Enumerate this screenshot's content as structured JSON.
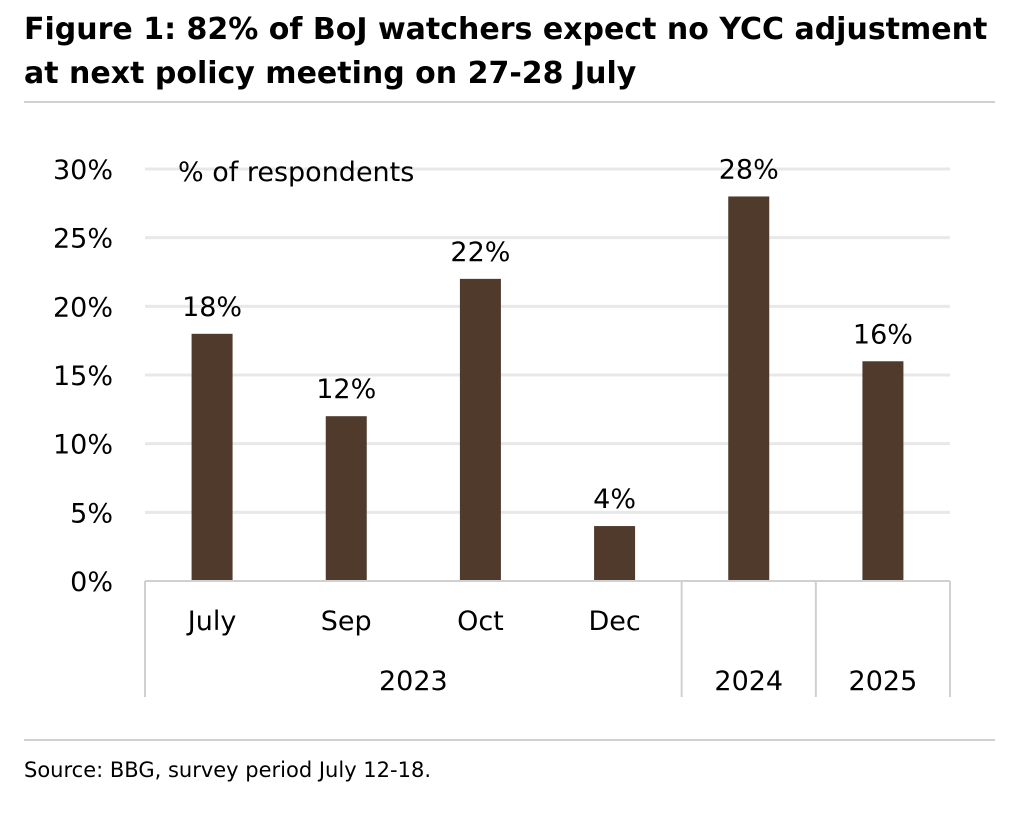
{
  "title": "Figure 1: 82% of BoJ watchers expect no YCC adjustment at next policy meeting on 27-28 July",
  "source": "Source: BBG, survey period July 12-18.",
  "colors": {
    "bar": "#4f3a2c",
    "grid": "#e8e8e8",
    "axis": "#d0d0d0",
    "rule": "#d0d0d0"
  },
  "chart_data": {
    "type": "bar",
    "title": "Figure 1: 82% of BoJ watchers expect no YCC adjustment at next policy meeting on 27-28 July",
    "ylabel": "% of respondents",
    "xlabel": "",
    "ylim": [
      0,
      30
    ],
    "y_ticks": [
      "0%",
      "5%",
      "10%",
      "15%",
      "20%",
      "25%",
      "30%"
    ],
    "grid": "horizontal",
    "categories": [
      "July",
      "Sep",
      "Oct",
      "Dec",
      "",
      ""
    ],
    "groups": [
      {
        "label": "2023",
        "count": 4
      },
      {
        "label": "2024",
        "count": 1
      },
      {
        "label": "2025",
        "count": 1
      }
    ],
    "series": [
      {
        "values": [
          18,
          12,
          22,
          4,
          28,
          16
        ],
        "data_labels": [
          "18%",
          "12%",
          "22%",
          "4%",
          "28%",
          "16%"
        ]
      }
    ]
  }
}
